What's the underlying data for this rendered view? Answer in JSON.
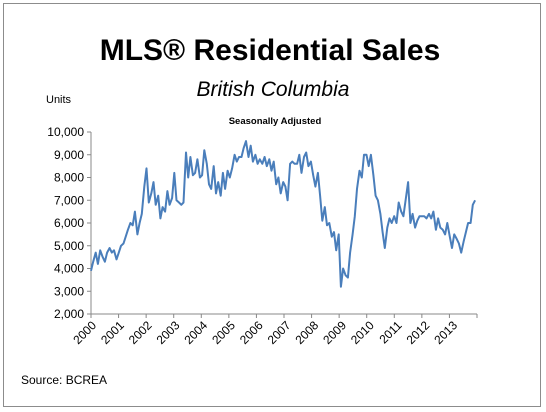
{
  "chart_data": {
    "type": "line",
    "title": "MLS® Residential Sales",
    "subtitle": "British Columbia",
    "note": "Seasonally Adjusted",
    "ylabel": "Units",
    "source": "Source: BCREA",
    "ylim": [
      2000,
      10000
    ],
    "yticks": [
      2000,
      3000,
      4000,
      5000,
      6000,
      7000,
      8000,
      9000,
      10000
    ],
    "ytick_labels": [
      "2,000",
      "3,000",
      "4,000",
      "5,000",
      "6,000",
      "7,000",
      "8,000",
      "9,000",
      "10,000"
    ],
    "xlim": [
      2000,
      2013.9
    ],
    "xtick_labels": [
      "2000",
      "2001",
      "2002",
      "2003",
      "2004",
      "2005",
      "2006",
      "2007",
      "2008",
      "2009",
      "2010",
      "2011",
      "2012",
      "2013"
    ],
    "grid": false,
    "legend": "none",
    "line_color": "#4a7ebb",
    "series": [
      {
        "x": [
          2000.0,
          2000.08,
          2000.17,
          2000.25,
          2000.33,
          2000.42,
          2000.5,
          2000.58,
          2000.67,
          2000.75,
          2000.83,
          2000.92,
          2001.0,
          2001.08,
          2001.17,
          2001.25,
          2001.33,
          2001.42,
          2001.5,
          2001.58,
          2001.67,
          2001.75,
          2001.83,
          2001.92,
          2002.0,
          2002.08,
          2002.17,
          2002.25,
          2002.33,
          2002.42,
          2002.5,
          2002.58,
          2002.67,
          2002.75,
          2002.83,
          2002.92,
          2003.0,
          2003.08,
          2003.17,
          2003.25,
          2003.33,
          2003.42,
          2003.5,
          2003.58,
          2003.67,
          2003.75,
          2003.83,
          2003.92,
          2004.0,
          2004.08,
          2004.17,
          2004.25,
          2004.33,
          2004.42,
          2004.5,
          2004.58,
          2004.67,
          2004.75,
          2004.83,
          2004.92,
          2005.0,
          2005.08,
          2005.17,
          2005.25,
          2005.33,
          2005.42,
          2005.5,
          2005.58,
          2005.67,
          2005.75,
          2005.83,
          2005.92,
          2006.0,
          2006.08,
          2006.17,
          2006.25,
          2006.33,
          2006.42,
          2006.5,
          2006.58,
          2006.67,
          2006.75,
          2006.83,
          2006.92,
          2007.0,
          2007.08,
          2007.17,
          2007.25,
          2007.33,
          2007.42,
          2007.5,
          2007.58,
          2007.67,
          2007.75,
          2007.83,
          2007.92,
          2008.0,
          2008.08,
          2008.17,
          2008.25,
          2008.33,
          2008.42,
          2008.5,
          2008.58,
          2008.67,
          2008.75,
          2008.83,
          2008.92,
          2009.0,
          2009.08,
          2009.17,
          2009.25,
          2009.33,
          2009.42,
          2009.5,
          2009.58,
          2009.67,
          2009.75,
          2009.83,
          2009.92,
          2010.0,
          2010.08,
          2010.17,
          2010.25,
          2010.33,
          2010.42,
          2010.5,
          2010.58,
          2010.67,
          2010.75,
          2010.83,
          2010.92,
          2011.0,
          2011.08,
          2011.17,
          2011.25,
          2011.33,
          2011.42,
          2011.5,
          2011.58,
          2011.67,
          2011.75,
          2011.83,
          2011.92,
          2012.0,
          2012.08,
          2012.17,
          2012.25,
          2012.33,
          2012.42,
          2012.5,
          2012.58,
          2012.67,
          2012.75,
          2012.83,
          2012.92,
          2013.0,
          2013.08,
          2013.17,
          2013.25,
          2013.33,
          2013.42,
          2013.5,
          2013.58,
          2013.67,
          2013.75,
          2013.83
        ],
        "values": [
          3900,
          4300,
          4700,
          4200,
          4800,
          4500,
          4300,
          4700,
          4900,
          4700,
          4800,
          4400,
          4700,
          5000,
          5100,
          5400,
          5700,
          6000,
          5900,
          6500,
          5500,
          6000,
          6400,
          7600,
          8400,
          6900,
          7300,
          7800,
          6800,
          7200,
          6200,
          6700,
          6500,
          7400,
          6800,
          7100,
          8200,
          7000,
          6900,
          6800,
          6900,
          9100,
          8000,
          8900,
          8100,
          8200,
          8800,
          8000,
          8100,
          9200,
          8600,
          7700,
          7500,
          8500,
          7300,
          7800,
          7200,
          8200,
          7500,
          8300,
          8000,
          8400,
          9000,
          8700,
          8900,
          8900,
          9300,
          9600,
          8900,
          9400,
          8700,
          9000,
          8600,
          8800,
          8600,
          8900,
          8500,
          8800,
          8300,
          8700,
          7700,
          8000,
          7300,
          7800,
          7600,
          7000,
          8600,
          8700,
          8600,
          8600,
          9000,
          8200,
          8900,
          9100,
          8500,
          8700,
          8100,
          7600,
          8200,
          7200,
          6100,
          6700,
          5900,
          6000,
          5400,
          5600,
          4800,
          5500,
          3200,
          4000,
          3700,
          3600,
          4700,
          5500,
          6300,
          7500,
          8300,
          8000,
          9000,
          9000,
          8500,
          9000,
          8100,
          7200,
          7000,
          6400,
          5600,
          4900,
          5800,
          6200,
          6000,
          6300,
          6000,
          6900,
          6500,
          6300,
          7000,
          7800,
          6000,
          6400,
          5800,
          6100,
          6300,
          6300,
          6300,
          6200,
          6400,
          6200,
          6500,
          5700,
          6200,
          5800,
          5700,
          5500,
          6000,
          5400,
          4900,
          5500,
          5300,
          5100,
          4700,
          5200,
          5600,
          6000,
          6000,
          6800,
          7000
        ]
      }
    ]
  }
}
